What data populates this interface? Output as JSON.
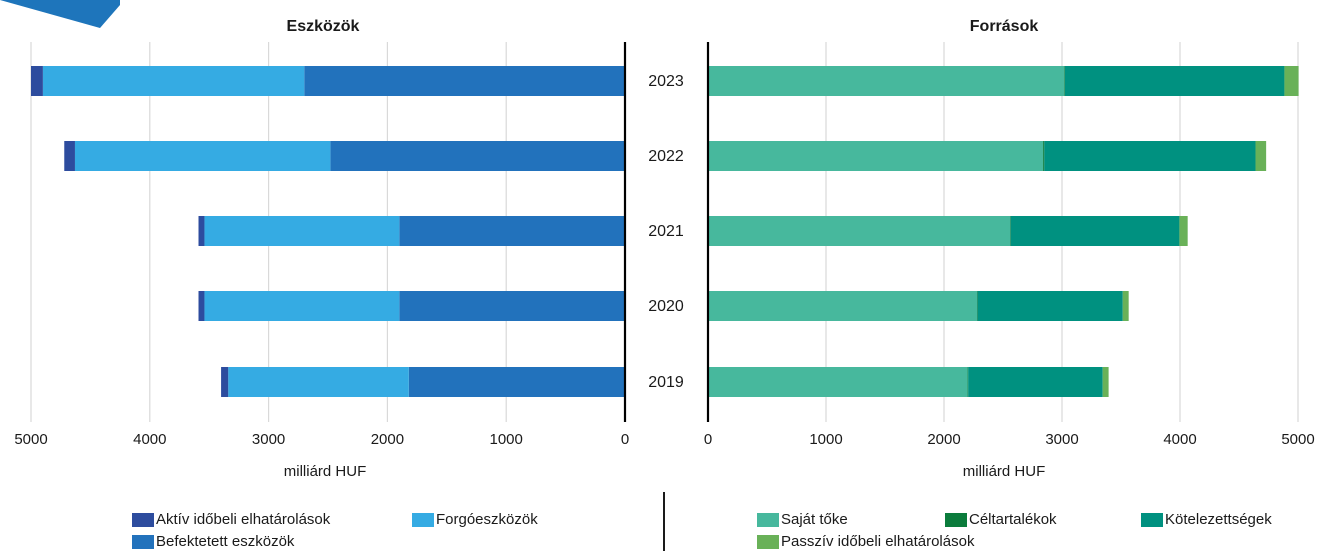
{
  "chart_data": [
    {
      "type": "bar",
      "orientation": "horizontal-reversed",
      "title": "Eszközök",
      "xlabel": "milliárd HUF",
      "categories": [
        "2023",
        "2022",
        "2021",
        "2020",
        "2019"
      ],
      "xlim": [
        0,
        5000
      ],
      "xticks": [
        5000,
        4000,
        3000,
        2000,
        1000,
        0
      ],
      "grid": true,
      "stacked": true,
      "series": [
        {
          "name": "Befektetett eszközök",
          "color": "#2272BC",
          "values": [
            2700,
            2480,
            1900,
            1900,
            1820
          ]
        },
        {
          "name": "Forgóeszközök",
          "color": "#35ABE3",
          "values": [
            2200,
            2150,
            1640,
            1640,
            1520
          ]
        },
        {
          "name": "Aktív időbeli elhatárolások",
          "color": "#2D4C9E",
          "values": [
            100,
            90,
            50,
            50,
            60
          ]
        }
      ],
      "legend_order": [
        "Aktív időbeli elhatárolások",
        "Forgóeszközök",
        "Befektetett eszközök"
      ]
    },
    {
      "type": "bar",
      "orientation": "horizontal",
      "title": "Források",
      "xlabel": "milliárd HUF",
      "categories": [
        "2023",
        "2022",
        "2021",
        "2020",
        "2019"
      ],
      "xlim": [
        0,
        5000
      ],
      "xticks": [
        0,
        1000,
        2000,
        3000,
        4000,
        5000
      ],
      "grid": true,
      "stacked": true,
      "series": [
        {
          "name": "Saját tőke",
          "color": "#47B89D",
          "values": [
            3020,
            2840,
            2560,
            2280,
            2200
          ]
        },
        {
          "name": "Céltartalékok",
          "color": "#0B7C3C",
          "values": [
            5,
            10,
            5,
            5,
            5
          ]
        },
        {
          "name": "Kötelezettségek",
          "color": "#009180",
          "values": [
            1860,
            1790,
            1430,
            1230,
            1140
          ]
        },
        {
          "name": "Passzív időbeli elhatárolások",
          "color": "#69B158",
          "values": [
            120,
            90,
            70,
            50,
            50
          ]
        }
      ],
      "legend_order": [
        "Saját tőke",
        "Céltartalékok",
        "Kötelezettségek",
        "Passzív időbeli elhatárolások"
      ]
    }
  ]
}
